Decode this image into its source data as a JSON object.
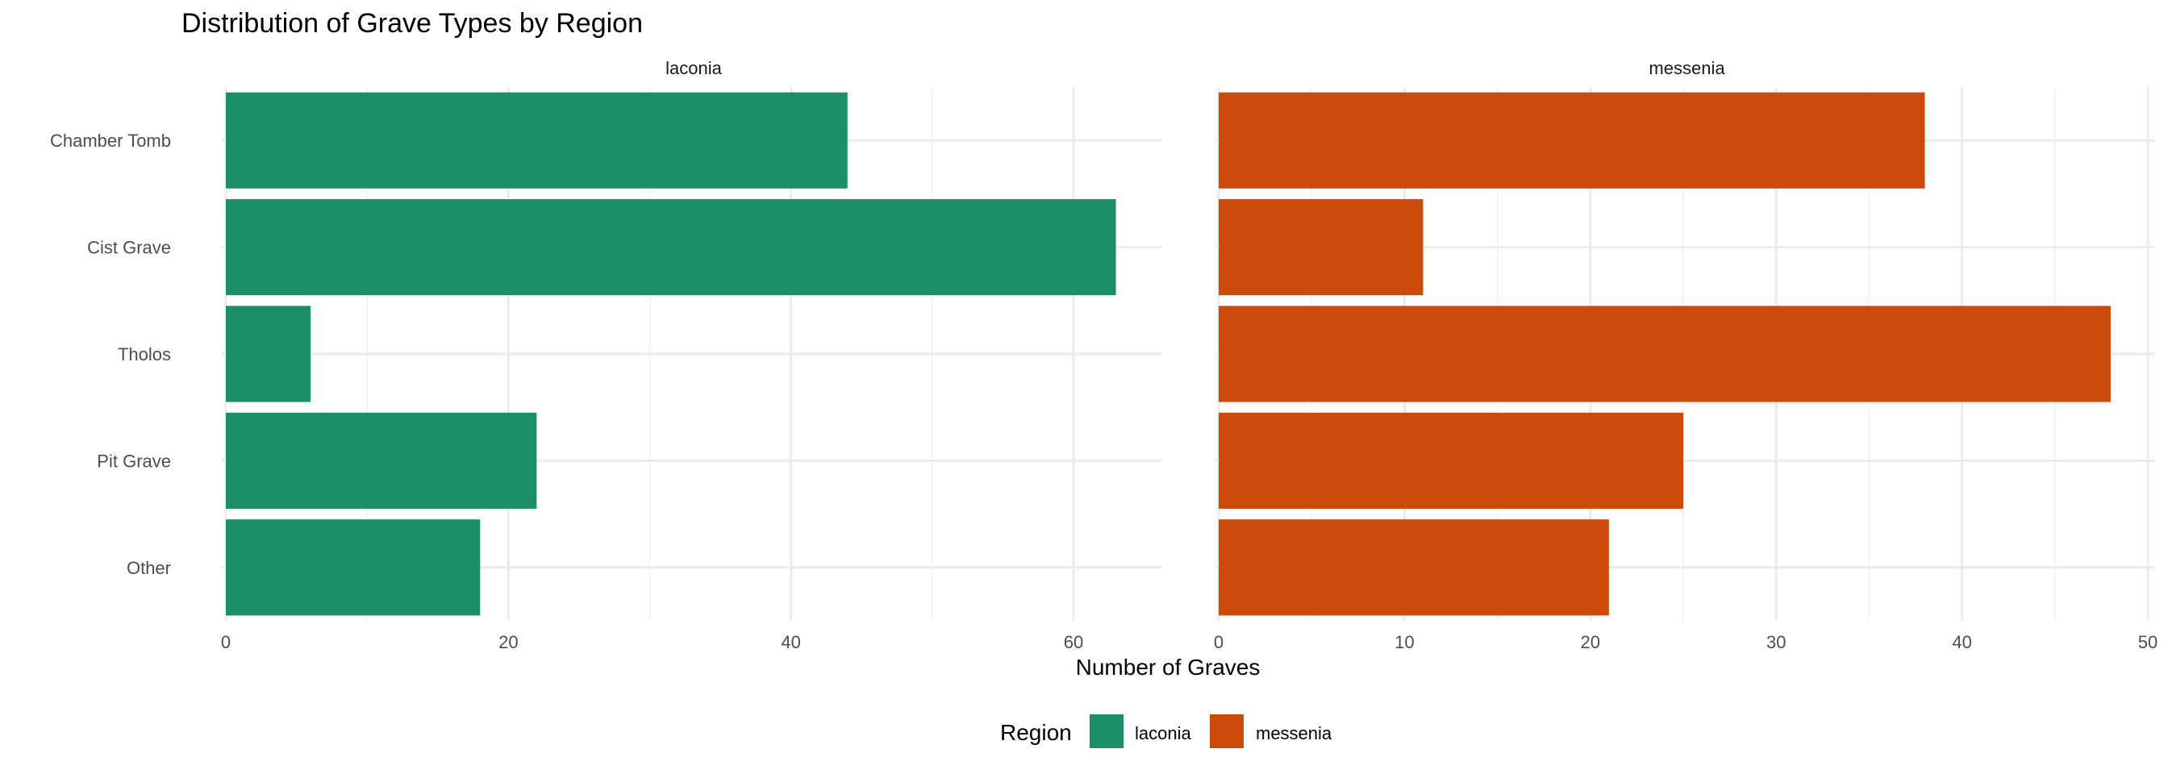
{
  "chart_data": {
    "type": "bar",
    "orientation": "horizontal",
    "title": "Distribution of Grave Types by Region",
    "xlabel": "Number of Graves",
    "ylabel": "",
    "categories": [
      "Chamber Tomb",
      "Cist Grave",
      "Tholos",
      "Pit Grave",
      "Other"
    ],
    "facets": [
      {
        "name": "laconia",
        "color": "#1b9066",
        "values": [
          44,
          63,
          6,
          22,
          18
        ],
        "xlim": [
          0,
          66
        ],
        "major_ticks": [
          0,
          20,
          40,
          60
        ],
        "minor_ticks": [
          10,
          30,
          50
        ]
      },
      {
        "name": "messenia",
        "color": "#cc4a0a",
        "values": [
          38,
          11,
          48,
          25,
          21
        ],
        "xlim": [
          0,
          50
        ],
        "major_ticks": [
          0,
          10,
          20,
          30,
          40,
          50
        ],
        "minor_ticks": [
          5,
          15,
          25,
          35,
          45
        ]
      }
    ],
    "grid": true,
    "legend": {
      "title": "Region",
      "position": "bottom",
      "items": [
        {
          "label": "laconia",
          "color": "#1b9066"
        },
        {
          "label": "messenia",
          "color": "#cc4a0a"
        }
      ]
    }
  }
}
